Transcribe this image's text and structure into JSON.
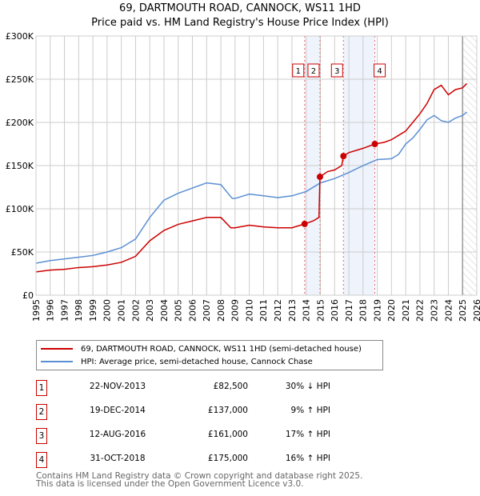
{
  "chart_data": {
    "type": "line",
    "title": "69, DARTMOUTH ROAD, CANNOCK, WS11 1HD",
    "subtitle": "Price paid vs. HM Land Registry's House Price Index (HPI)",
    "xlim": [
      1995,
      2026
    ],
    "ylim": [
      0,
      300000
    ],
    "x_ticks": [
      "1995",
      "1996",
      "1997",
      "1998",
      "1999",
      "2000",
      "2001",
      "2002",
      "2003",
      "2004",
      "2005",
      "2006",
      "2007",
      "2008",
      "2009",
      "2010",
      "2011",
      "2012",
      "2013",
      "2014",
      "2015",
      "2016",
      "2017",
      "2018",
      "2019",
      "2020",
      "2021",
      "2022",
      "2023",
      "2024",
      "2025",
      "2026"
    ],
    "y_ticks": [
      {
        "v": 0,
        "label": "£0"
      },
      {
        "v": 50000,
        "label": "£50K"
      },
      {
        "v": 100000,
        "label": "£100K"
      },
      {
        "v": 150000,
        "label": "£150K"
      },
      {
        "v": 200000,
        "label": "£200K"
      },
      {
        "v": 250000,
        "label": "£250K"
      },
      {
        "v": 300000,
        "label": "£300K"
      }
    ],
    "grid": true,
    "series": [
      {
        "name": "69, DARTMOUTH ROAD, CANNOCK, WS11 1HD (semi-detached house)",
        "color": "#cc0000",
        "x": [
          1995,
          1996,
          1997,
          1998,
          1999,
          2000,
          2001,
          2002,
          2003,
          2004,
          2005,
          2006,
          2007,
          2008,
          2008.7,
          2009,
          2010,
          2011,
          2012,
          2013,
          2013.9,
          2014.5,
          2014.9,
          2014.97,
          2015.5,
          2016,
          2016.5,
          2016.62,
          2017,
          2018,
          2018.83,
          2019.5,
          2020,
          2020.5,
          2021,
          2021.5,
          2022,
          2022.5,
          2023,
          2023.5,
          2024,
          2024.5,
          2025,
          2025.3
        ],
        "y": [
          27000,
          29000,
          30000,
          32000,
          33000,
          35000,
          38000,
          45000,
          63000,
          75000,
          82000,
          86000,
          90000,
          90000,
          78000,
          78000,
          81000,
          79000,
          78000,
          78000,
          82500,
          86000,
          90000,
          137000,
          143000,
          145000,
          150000,
          161000,
          165000,
          170000,
          175000,
          177000,
          180000,
          185000,
          190000,
          200000,
          210000,
          222000,
          238000,
          243000,
          232000,
          238000,
          240000,
          245000
        ]
      },
      {
        "name": "HPI: Average price, semi-detached house, Cannock Chase",
        "color": "#5b8fd4",
        "x": [
          1995,
          1996,
          1997,
          1998,
          1999,
          2000,
          2001,
          2002,
          2003,
          2004,
          2005,
          2006,
          2007,
          2008,
          2008.8,
          2009,
          2010,
          2011,
          2012,
          2013,
          2014,
          2015,
          2016,
          2017,
          2018,
          2019,
          2020,
          2020.5,
          2021,
          2021.5,
          2022,
          2022.5,
          2023,
          2023.5,
          2024,
          2024.5,
          2025,
          2025.3
        ],
        "y": [
          37000,
          40000,
          42000,
          44000,
          46000,
          50000,
          55000,
          65000,
          90000,
          110000,
          118000,
          124000,
          130000,
          128000,
          112000,
          112000,
          117000,
          115000,
          113000,
          115000,
          120000,
          130000,
          135000,
          142000,
          150000,
          157000,
          158000,
          163000,
          175000,
          182000,
          192000,
          203000,
          208000,
          202000,
          200000,
          205000,
          208000,
          212000
        ]
      }
    ],
    "sales": [
      {
        "n": "1",
        "x": 2013.89,
        "y": 82500
      },
      {
        "n": "2",
        "x": 2014.97,
        "y": 137000
      },
      {
        "n": "3",
        "x": 2016.62,
        "y": 161000
      },
      {
        "n": "4",
        "x": 2018.83,
        "y": 175000
      }
    ],
    "shaded_ranges": [
      [
        2013.89,
        2014.97
      ],
      [
        2016.62,
        2018.83
      ]
    ],
    "forecast_from": 2025.0
  },
  "legend": {
    "property": "69, DARTMOUTH ROAD, CANNOCK, WS11 1HD (semi-detached house)",
    "hpi": "HPI: Average price, semi-detached house, Cannock Chase"
  },
  "table": [
    {
      "num": "1",
      "date": "22-NOV-2013",
      "price": "£82,500",
      "hpi": "30% ↓ HPI"
    },
    {
      "num": "2",
      "date": "19-DEC-2014",
      "price": "£137,000",
      "hpi": "9% ↑ HPI"
    },
    {
      "num": "3",
      "date": "12-AUG-2016",
      "price": "£161,000",
      "hpi": "17% ↑ HPI"
    },
    {
      "num": "4",
      "date": "31-OCT-2018",
      "price": "£175,000",
      "hpi": "16% ↑ HPI"
    }
  ],
  "footer": {
    "line1": "Contains HM Land Registry data © Crown copyright and database right 2025.",
    "line2": "This data is licensed under the Open Government Licence v3.0."
  }
}
